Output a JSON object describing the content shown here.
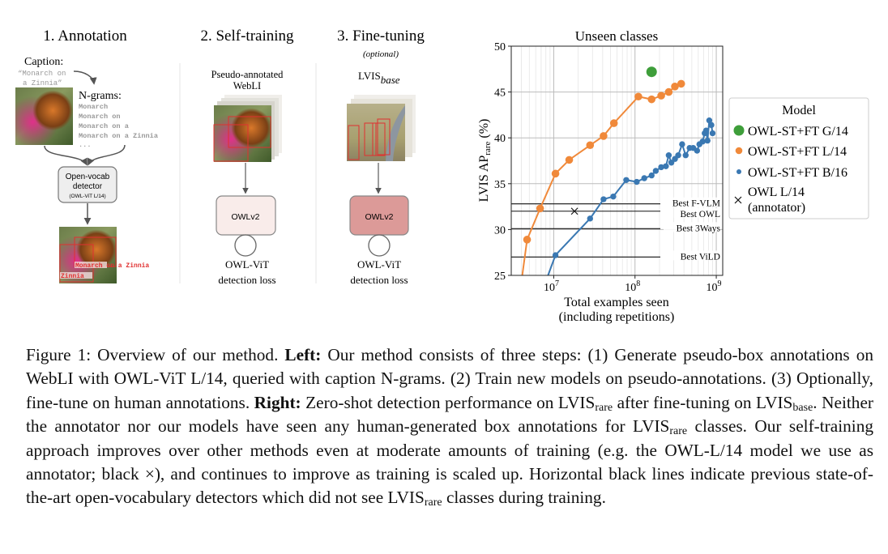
{
  "figure": {
    "panels": {
      "annotation": {
        "title": "1. Annotation",
        "caption_label": "Caption:",
        "caption_lines": [
          "“Monarch on",
          "a Zinnia”"
        ],
        "ngrams_label": "N-grams:",
        "ngrams": [
          "Monarch",
          "Monarch on",
          "Monarch on a",
          "Monarch on a Zinnia",
          "..."
        ],
        "detector_lines": [
          "Open-vocab",
          "detector"
        ],
        "detector_sub": "(OWL-ViT L/14)",
        "box_labels": [
          "Monarch on a Zinnia",
          "Zinnia"
        ]
      },
      "self_training": {
        "title": "2. Self-training",
        "dataset_lines": [
          "Pseudo-annotated",
          "WebLI"
        ],
        "model": "OWLv2",
        "loss_lines": [
          "OWL-ViT",
          "detection loss"
        ],
        "box_color": "#f9ecea"
      },
      "fine_tuning": {
        "title": "3. Fine-tuning",
        "subtitle": "(optional)",
        "dataset": "LVIS",
        "dataset_sub": "base",
        "model": "OWLv2",
        "loss_lines": [
          "OWL-ViT",
          "detection loss"
        ],
        "box_color": "#dc9a98"
      }
    }
  },
  "chart_data": {
    "type": "line",
    "title": "Unseen classes",
    "xlabel_lines": [
      "Total examples seen",
      "(including repetitions)"
    ],
    "ylabel": "LVIS AP",
    "ylabel_sub": "rare",
    "ylabel_unit": " (%)",
    "xscale": "log",
    "xlim": [
      3000000,
      1200000000
    ],
    "ylim": [
      25,
      50
    ],
    "xticks": [
      {
        "v": 10000000,
        "base": "10",
        "exp": "7"
      },
      {
        "v": 100000000,
        "base": "10",
        "exp": "8"
      },
      {
        "v": 1000000000,
        "base": "10",
        "exp": "9"
      }
    ],
    "yticks": [
      25,
      30,
      35,
      40,
      45,
      50
    ],
    "grid": true,
    "legend": {
      "title": "Model",
      "placement": "outside-right",
      "entries": [
        {
          "label": "OWL-ST+FT G/14",
          "marker": "big-circle",
          "color": "#3e9e3a"
        },
        {
          "label": "OWL-ST+FT L/14",
          "marker": "circle",
          "color": "#f0893a"
        },
        {
          "label": "OWL-ST+FT B/16",
          "marker": "small-circle",
          "color": "#3a78b2"
        },
        {
          "label": "OWL L/14",
          "label2": "(annotator)",
          "marker": "x",
          "color": "#111111"
        }
      ]
    },
    "series": [
      {
        "name": "OWL-ST+FT G/14",
        "color": "#3e9e3a",
        "points": [
          [
            160000000,
            47.2
          ]
        ]
      },
      {
        "name": "OWL-ST+FT L/14",
        "color": "#f0893a",
        "line_start": [
          4100000,
          25
        ],
        "points": [
          [
            4700000,
            28.9
          ],
          [
            6800000,
            32.3
          ],
          [
            10500000,
            36.1
          ],
          [
            15500000,
            37.6
          ],
          [
            28000000,
            39.2
          ],
          [
            41000000,
            40.2
          ],
          [
            55000000,
            41.6
          ],
          [
            110000000,
            44.5
          ],
          [
            160000000,
            44.2
          ],
          [
            210000000,
            44.6
          ],
          [
            260000000,
            45.0
          ],
          [
            310000000,
            45.6
          ],
          [
            370000000,
            45.9
          ]
        ]
      },
      {
        "name": "OWL-ST+FT B/16",
        "color": "#3a78b2",
        "line_start": [
          8500000,
          25
        ],
        "points": [
          [
            10500000,
            27.2
          ],
          [
            28000000,
            31.2
          ],
          [
            41000000,
            33.3
          ],
          [
            54000000,
            33.6
          ],
          [
            78000000,
            35.4
          ],
          [
            105000000,
            35.2
          ],
          [
            130000000,
            35.6
          ],
          [
            160000000,
            35.9
          ],
          [
            180000000,
            36.4
          ],
          [
            210000000,
            36.8
          ],
          [
            240000000,
            36.9
          ],
          [
            260000000,
            38.1
          ],
          [
            280000000,
            37.3
          ],
          [
            310000000,
            37.7
          ],
          [
            340000000,
            38.1
          ],
          [
            380000000,
            39.3
          ],
          [
            420000000,
            38.1
          ],
          [
            470000000,
            38.9
          ],
          [
            520000000,
            38.9
          ],
          [
            580000000,
            38.6
          ],
          [
            620000000,
            39.3
          ],
          [
            680000000,
            39.6
          ],
          [
            720000000,
            40.5
          ],
          [
            750000000,
            40.8
          ],
          [
            780000000,
            39.7
          ],
          [
            820000000,
            41.9
          ],
          [
            870000000,
            41.4
          ],
          [
            900000000,
            40.5
          ]
        ]
      },
      {
        "name": "OWL L/14",
        "marker": "x",
        "color": "#111111",
        "points": [
          [
            18000000,
            32.0
          ]
        ]
      }
    ],
    "reference_lines": [
      {
        "label": "Best F-VLM",
        "y": 32.8
      },
      {
        "label": "Best OWL",
        "y": 32.0
      },
      {
        "label": "Best 3Ways",
        "y": 30.1
      },
      {
        "label": "Best ViLD",
        "y": 27.0
      }
    ]
  },
  "caption": [
    {
      "t": "Figure 1: Overview of our method. "
    },
    {
      "t": "Left:",
      "b": true
    },
    {
      "t": " Our method consists of three steps: (1) Generate pseudo-box annotations on WebLI with OWL-ViT L/14, queried with caption N-grams. (2) Train new models on pseudo-annotations. (3) Optionally, fine-tune on human annotations. "
    },
    {
      "t": "Right:",
      "b": true
    },
    {
      "t": " Zero-shot detection performance on LVIS"
    },
    {
      "t": "rare",
      "sub": true
    },
    {
      "t": " after fine-tuning on LVIS"
    },
    {
      "t": "base",
      "sub": true
    },
    {
      "t": ". Neither the annotator nor our models have seen any human-generated box annotations for LVIS"
    },
    {
      "t": "rare",
      "sub": true
    },
    {
      "t": " classes. Our self-training approach improves over other methods even at moderate amounts of training (e.g. the OWL-L/14 model we use as annotator; black ×), and continues to improve as training is scaled up. Horizontal black lines indicate previous state-of-the-art open-vocabulary detectors which did not see LVIS"
    },
    {
      "t": "rare",
      "sub": true
    },
    {
      "t": " classes during training."
    }
  ]
}
